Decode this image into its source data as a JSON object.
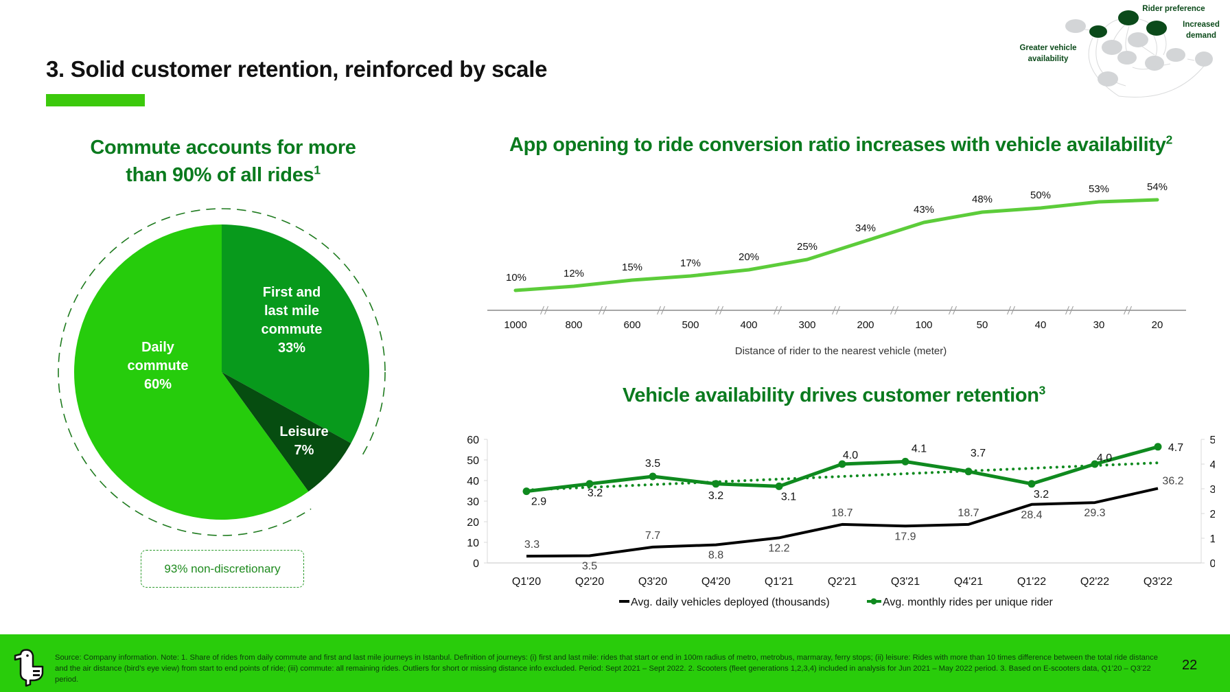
{
  "header": {
    "title": "3. Solid customer retention, reinforced by scale",
    "accent_color": "#3cc90c"
  },
  "flywheel": {
    "labels": {
      "greater_vehicle_availability": "Greater vehicle availability",
      "rider_preference": "Rider preference",
      "increased_demand": "Increased demand"
    },
    "colors": {
      "highlight": "#0b4a1a",
      "inactive": "#d3d5d7"
    }
  },
  "pie_section": {
    "title_line1": "Commute accounts for more",
    "title_line2": "than 90% of all rides",
    "title_sup": "1",
    "non_discretionary_label": "93% non-discretionary"
  },
  "conversion_section": {
    "title": "App opening to ride conversion ratio increases with vehicle availability",
    "title_sup": "2"
  },
  "retention_section": {
    "title": "Vehicle availability drives customer retention",
    "title_sup": "3"
  },
  "chart_data": [
    {
      "type": "pie",
      "title": "Commute accounts for more than 90% of all rides",
      "slices": [
        {
          "label": "First and last mile commute",
          "value": 33,
          "display": "33%",
          "color": "#089a1c",
          "text_lines": [
            "First and",
            "last mile",
            "commute",
            "33%"
          ]
        },
        {
          "label": "Leisure",
          "value": 7,
          "display": "7%",
          "color": "#064d10",
          "text_lines": [
            "Leisure",
            "7%"
          ]
        },
        {
          "label": "Daily commute",
          "value": 60,
          "display": "60%",
          "color": "#26cc0c",
          "text_lines": [
            "Daily",
            "commute",
            "60%"
          ]
        }
      ],
      "annotation": "93% non-discretionary"
    },
    {
      "type": "line",
      "title": "App opening to ride conversion ratio increases with vehicle availability",
      "xlabel": "Distance of rider to the nearest vehicle (meter)",
      "ylabel": "",
      "categories": [
        "1000",
        "800",
        "600",
        "500",
        "400",
        "300",
        "200",
        "100",
        "50",
        "40",
        "30",
        "20"
      ],
      "series": [
        {
          "name": "Conversion ratio",
          "values": [
            10,
            12,
            15,
            17,
            20,
            25,
            34,
            43,
            48,
            50,
            53,
            54
          ],
          "labels": [
            "10%",
            "12%",
            "15%",
            "17%",
            "20%",
            "25%",
            "34%",
            "43%",
            "48%",
            "50%",
            "53%",
            "54%"
          ],
          "color": "#5ccc3a"
        }
      ],
      "ylim": [
        0,
        60
      ],
      "axis_breaks": true,
      "grid": false
    },
    {
      "type": "line",
      "title": "Vehicle availability drives customer retention",
      "categories": [
        "Q1'20",
        "Q2'20",
        "Q3'20",
        "Q4'20",
        "Q1'21",
        "Q2'21",
        "Q3'21",
        "Q4'21",
        "Q1'22",
        "Q2'22",
        "Q3'22"
      ],
      "y_left": {
        "ticks": [
          "0",
          "10",
          "20",
          "30",
          "40",
          "50",
          "60"
        ],
        "range": [
          0,
          60
        ]
      },
      "y_right": {
        "ticks": [
          "0",
          "1",
          "2",
          "3",
          "4",
          "5"
        ],
        "range": [
          0,
          5
        ]
      },
      "series": [
        {
          "name": "Avg. daily vehicles deployed (thousands)",
          "axis": "left",
          "color": "#000000",
          "values": [
            3.3,
            3.5,
            7.7,
            8.8,
            12.2,
            18.7,
            17.9,
            18.7,
            28.4,
            29.3,
            36.2
          ],
          "labels": [
            "3.3",
            "3.5",
            "7.7",
            "8.8",
            "12.2",
            "18.7",
            "17.9",
            "18.7",
            "28.4",
            "29.3",
            "36.2"
          ]
        },
        {
          "name": "Avg. monthly rides per unique rider",
          "axis": "right",
          "color": "#0f8a1f",
          "markers": true,
          "values": [
            2.9,
            3.2,
            3.5,
            3.2,
            3.1,
            4.0,
            4.1,
            3.7,
            3.2,
            4.0,
            4.7
          ],
          "labels": [
            "2.9",
            "3.2",
            "3.5",
            "3.2",
            "3.1",
            "4.0",
            "4.1",
            "3.7",
            "3.2",
            "4.0",
            "4.7"
          ]
        },
        {
          "name": "Trend (rides per rider)",
          "axis": "right",
          "color": "#0f8a1f",
          "style": "dotted",
          "legend": false,
          "values": [
            2.95,
            3.06,
            3.17,
            3.28,
            3.39,
            3.5,
            3.61,
            3.72,
            3.83,
            3.94,
            4.05
          ]
        }
      ],
      "legend": [
        "Avg. daily vehicles deployed (thousands)",
        "Avg. monthly rides per unique rider"
      ],
      "legend_position": "bottom",
      "grid": false
    }
  ],
  "footer": {
    "source_text": "Source: Company information. Note: 1. Share of rides from daily commute and first and last mile journeys in Istanbul. Definition of journeys: (i) first and last mile: rides that start or end in 100m radius of metro, metrobus, marmaray, ferry stops; (ii) leisure: Rides with more than 10 times difference between the total ride distance and the air distance (bird’s eye view) from start to end points of ride; (iii) commute: all remaining rides. Outliers for short or missing distance info excluded. Period: Sept 2021 – Sept 2022. 2. Scooters (fleet generations 1,2,3,4) included in analysis for Jun 2021 – May 2022 period. 3. Based on E-scooters data, Q1’20 – Q3’22 period.",
    "page_number": "22",
    "background_color": "#29cc0b"
  }
}
